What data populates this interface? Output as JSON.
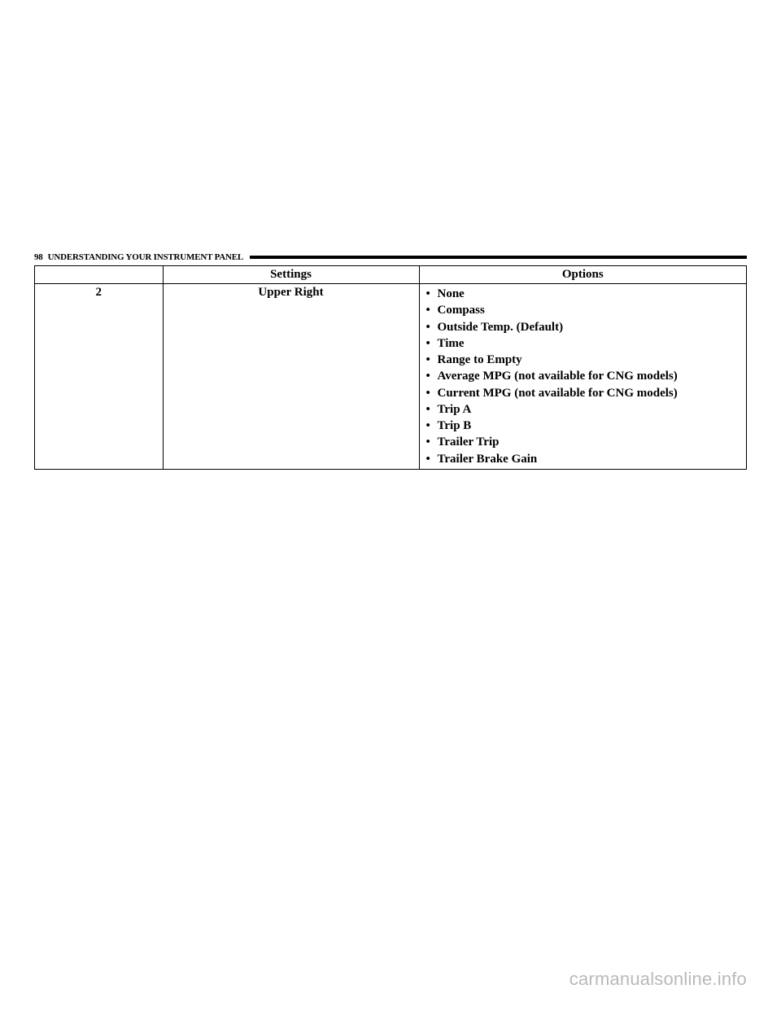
{
  "page": {
    "number": "98",
    "section_title": "UNDERSTANDING YOUR INSTRUMENT PANEL"
  },
  "table": {
    "headers": {
      "number": "",
      "settings": "Settings",
      "options": "Options"
    },
    "row": {
      "number": "2",
      "setting": "Upper Right",
      "options": [
        "None",
        "Compass",
        "Outside Temp. (Default)",
        "Time",
        "Range to Empty",
        "Average MPG (not available for CNG models)",
        "Current MPG (not available for CNG models)",
        "Trip A",
        "Trip B",
        "Trailer Trip",
        "Trailer Brake Gain"
      ]
    }
  },
  "watermark": "carmanualsonline.info"
}
